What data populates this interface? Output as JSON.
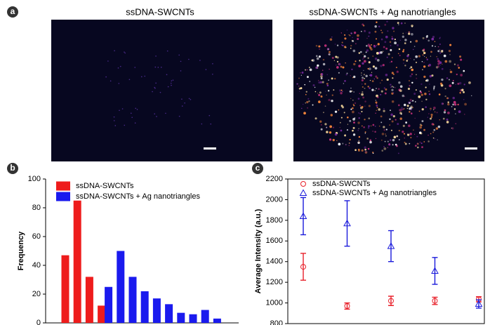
{
  "panel_labels": [
    "a",
    "b",
    "c"
  ],
  "images": [
    {
      "title": "ssDNA-SWCNTs",
      "color": "#e8202a"
    },
    {
      "title": "ssDNA-SWCNTs + Ag nanotriangles",
      "color": "#1a1adb"
    }
  ],
  "chart_data": [
    {
      "type": "bar",
      "y_label": "Frequency",
      "categories": [
        null,
        null,
        null,
        null,
        null,
        null,
        null,
        null,
        null,
        null,
        null,
        null,
        null
      ],
      "ylim": [
        0,
        100
      ],
      "yticks": [
        0,
        20,
        40,
        60,
        80,
        100
      ],
      "series": [
        {
          "name": "ssDNA-SWCNTs",
          "color": "#ee1c1c",
          "values": [
            47,
            85,
            32,
            12,
            null,
            null,
            null,
            null,
            null,
            null,
            null,
            null,
            null
          ]
        },
        {
          "name": "ssDNA-SWCNTs + Ag nanotriangles",
          "color": "#1a1aee",
          "values": [
            null,
            null,
            null,
            25,
            50,
            32,
            22,
            17,
            13,
            7,
            6,
            9,
            3
          ]
        }
      ]
    },
    {
      "type": "scatter",
      "y_label": "Average Intensity (a.u.)",
      "categories": [
        null,
        null,
        null,
        null,
        null
      ],
      "ylim": [
        800,
        2200
      ],
      "yticks": [
        800,
        1000,
        1200,
        1400,
        1600,
        1800,
        2000,
        2200
      ],
      "series": [
        {
          "name": "ssDNA-SWCNTs",
          "color": "#e8202a",
          "marker": "circle",
          "values": [
            1350,
            970,
            1020,
            1020,
            1035
          ],
          "errors": [
            130,
            30,
            45,
            35,
            25
          ]
        },
        {
          "name": "ssDNA-SWCNTs + Ag nanotriangles",
          "color": "#1a1adb",
          "marker": "triangle",
          "values": [
            1840,
            1770,
            1550,
            1310,
            990
          ],
          "errors": [
            180,
            220,
            150,
            130,
            40
          ]
        }
      ]
    }
  ]
}
